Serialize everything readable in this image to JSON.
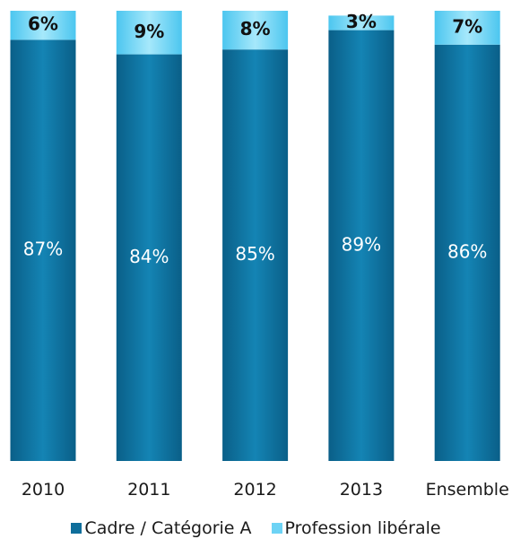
{
  "chart_data": {
    "type": "bar",
    "stacked": true,
    "categories": [
      "2010",
      "2011",
      "2012",
      "2013",
      "Ensemble"
    ],
    "series": [
      {
        "name": "Cadre / Catégorie A",
        "values": [
          87,
          84,
          85,
          89,
          86
        ],
        "labels": [
          "87%",
          "84%",
          "85%",
          "89%",
          "86%"
        ],
        "color": "#0e6e9b"
      },
      {
        "name": "Profession libérale",
        "values": [
          6,
          9,
          8,
          3,
          7
        ],
        "labels": [
          "6%",
          "9%",
          "8%",
          "3%",
          "7%"
        ],
        "color": "#6dd3f5"
      }
    ],
    "ylim": [
      0,
      93
    ],
    "grid": false,
    "legend_position": "bottom"
  }
}
